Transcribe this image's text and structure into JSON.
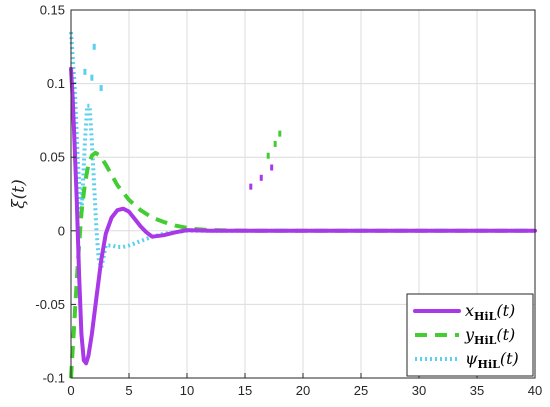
{
  "chart_data": {
    "type": "line",
    "title": "",
    "xlabel": "",
    "ylabel": "ξ(t)",
    "xlim": [
      0,
      40
    ],
    "ylim": [
      -0.1,
      0.15
    ],
    "xticks": [
      0,
      5,
      10,
      15,
      20,
      25,
      30,
      35,
      40
    ],
    "xtick_labels": [
      "0",
      "5",
      "10",
      "15",
      "20",
      "25",
      "30",
      "35",
      "40"
    ],
    "yticks": [
      -0.1,
      -0.05,
      0,
      0.05,
      0.1,
      0.15
    ],
    "ytick_labels": [
      "-0.1",
      "-0.05",
      "0",
      "0.05",
      "0.1",
      "0.15"
    ],
    "grid": true,
    "legend_position": "bottom-right",
    "series": [
      {
        "name": "x",
        "legend_sub": "HiL",
        "legend_suffix": "(t)",
        "color": "#a838e8",
        "style": "solid",
        "x": [
          0,
          0.15,
          0.3,
          0.5,
          0.7,
          0.9,
          1.1,
          1.3,
          1.5,
          1.8,
          2.2,
          2.6,
          3.0,
          3.5,
          4.0,
          4.5,
          5.0,
          5.5,
          6.0,
          6.5,
          7.0,
          8.0,
          9.0,
          10.0,
          12.0,
          15.0,
          20.0,
          40.0
        ],
        "y": [
          0.11,
          0.09,
          0.06,
          0.02,
          -0.03,
          -0.07,
          -0.088,
          -0.09,
          -0.085,
          -0.07,
          -0.045,
          -0.02,
          -0.002,
          0.009,
          0.014,
          0.015,
          0.013,
          0.008,
          0.003,
          -0.001,
          -0.004,
          -0.003,
          -0.001,
          0.0005,
          0.0,
          0.0,
          0.0,
          0.0
        ]
      },
      {
        "name": "y",
        "legend_sub": "HiL",
        "legend_suffix": "(t)",
        "color": "#44cc33",
        "style": "dashed",
        "x": [
          0,
          0.3,
          0.6,
          0.9,
          1.2,
          1.5,
          1.8,
          2.1,
          2.5,
          3.0,
          3.5,
          4.0,
          5.0,
          6.0,
          7.0,
          8.0,
          9.0,
          10.0,
          11.0,
          12.0,
          14.0,
          16.0,
          20.0,
          40.0
        ],
        "y": [
          -0.1,
          -0.06,
          -0.02,
          0.012,
          0.032,
          0.045,
          0.051,
          0.053,
          0.051,
          0.045,
          0.038,
          0.031,
          0.021,
          0.014,
          0.009,
          0.006,
          0.0035,
          0.002,
          0.001,
          0.0005,
          0.0002,
          0.0,
          0.0,
          0.0
        ]
      },
      {
        "name": "ψ",
        "legend_sub": "HiL",
        "legend_suffix": "(t)",
        "color": "#5ad0ee",
        "style": "dotted",
        "x": [
          0,
          0.3,
          0.6,
          0.9,
          1.2,
          1.4,
          1.6,
          1.8,
          2.0,
          2.2,
          2.4,
          2.6,
          2.8,
          3.0,
          3.5,
          4.0,
          4.5,
          5.0,
          6.0,
          7.0,
          8.0,
          10.0,
          12.0,
          15.0,
          20.0,
          40.0
        ],
        "y": [
          0.135,
          0.1,
          0.045,
          0.01,
          0.06,
          0.085,
          0.085,
          0.06,
          0.03,
          0.0,
          -0.02,
          -0.025,
          -0.018,
          -0.01,
          -0.01,
          -0.011,
          -0.011,
          -0.01,
          -0.007,
          -0.004,
          -0.002,
          0.0,
          0.0,
          0.0,
          0.0,
          0.0
        ]
      }
    ],
    "scattered_markers": [
      {
        "color": "#5ad0ee",
        "x": [
          2.0,
          1.2,
          1.8,
          2.6
        ],
        "y": [
          0.125,
          0.108,
          0.104,
          0.097
        ]
      },
      {
        "color": "#44cc33",
        "x": [
          18.0,
          17.6,
          17.0
        ],
        "y": [
          0.066,
          0.059,
          0.051
        ]
      },
      {
        "color": "#a838e8",
        "x": [
          17.3,
          16.4,
          15.5
        ],
        "y": [
          0.043,
          0.036,
          0.03
        ]
      }
    ]
  }
}
